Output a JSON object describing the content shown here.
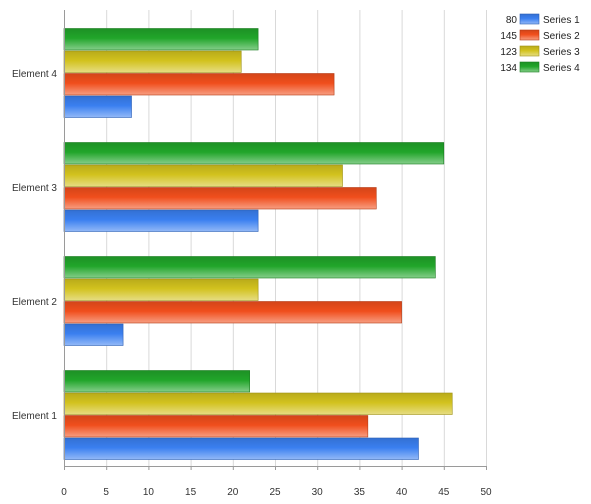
{
  "chart_data": {
    "type": "bar",
    "orientation": "horizontal",
    "categories": [
      "Element 1",
      "Element 2",
      "Element 3",
      "Element 4"
    ],
    "series": [
      {
        "name": "Series 1",
        "total": "80",
        "color": "#3a7ff0",
        "values": [
          42,
          7,
          23,
          8
        ]
      },
      {
        "name": "Series 2",
        "total": "145",
        "color": "#f04e1c",
        "values": [
          36,
          40,
          37,
          32
        ]
      },
      {
        "name": "Series 3",
        "total": "123",
        "color": "#d2c21e",
        "values": [
          46,
          23,
          33,
          21
        ]
      },
      {
        "name": "Series 4",
        "total": "134",
        "color": "#21a52a",
        "values": [
          22,
          44,
          45,
          23
        ]
      }
    ],
    "xlim": [
      0,
      50
    ],
    "xticks": [
      "0",
      "5",
      "10",
      "15",
      "20",
      "25",
      "30",
      "35",
      "40",
      "45",
      "50"
    ],
    "grid": "vertical",
    "legend_position": "top-right"
  }
}
